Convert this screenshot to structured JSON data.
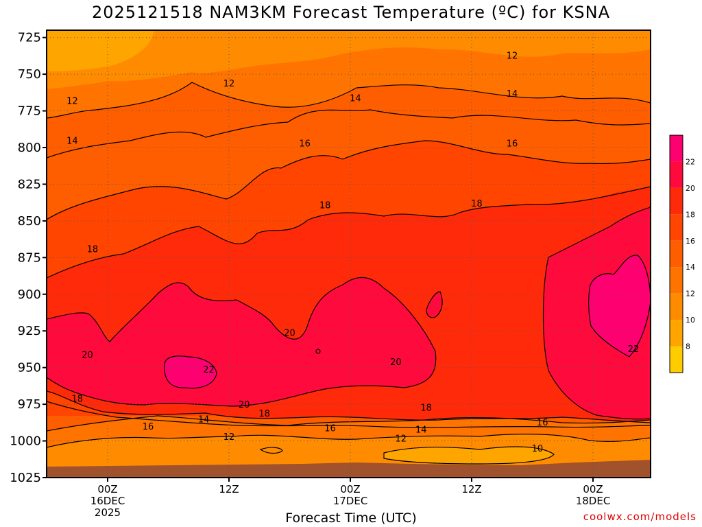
{
  "title": "2025121518 NAM3KM Forecast Temperature (ºC) for KSNA",
  "credit": "coolwx.com/models",
  "chart_data": {
    "type": "contour",
    "title": "2025121518 NAM3KM Forecast Temperature (ºC) for KSNA",
    "xlabel": "Forecast Time (UTC)",
    "ylabel": "",
    "y_axis": {
      "ticks": [
        725,
        750,
        775,
        800,
        825,
        850,
        875,
        900,
        925,
        950,
        975,
        1000,
        1025
      ],
      "range": [
        720,
        1025
      ],
      "inverted": true,
      "units": "hPa"
    },
    "x_axis": {
      "range_hours_from_00z_16dec": [
        -6,
        54
      ],
      "ticks": [
        {
          "hour": 0,
          "lines": [
            "00Z",
            "16DEC",
            "2025"
          ]
        },
        {
          "hour": 12,
          "lines": [
            "12Z"
          ]
        },
        {
          "hour": 24,
          "lines": [
            "00Z",
            "17DEC"
          ]
        },
        {
          "hour": 36,
          "lines": [
            "12Z"
          ]
        },
        {
          "hour": 48,
          "lines": [
            "00Z",
            "18DEC"
          ]
        }
      ]
    },
    "grid": true,
    "colorbar": {
      "position": "right",
      "levels": [
        6,
        8,
        10,
        12,
        14,
        16,
        18,
        20,
        22,
        24
      ],
      "labels": [
        "8",
        "10",
        "12",
        "14",
        "16",
        "18",
        "20",
        "22"
      ],
      "colors": [
        "#ffcc00",
        "#ffa500",
        "#ff8c00",
        "#ff7400",
        "#ff5e00",
        "#ff4500",
        "#ff2a0a",
        "#ff0a3c",
        "#ff0070"
      ]
    },
    "contour_labels": [
      {
        "value": "12",
        "hour": -3.5,
        "p": 768
      },
      {
        "value": "14",
        "hour": -3.5,
        "p": 795
      },
      {
        "value": "12",
        "hour": 12,
        "p": 756
      },
      {
        "value": "14",
        "hour": 24.5,
        "p": 766
      },
      {
        "value": "16",
        "hour": 19.5,
        "p": 797
      },
      {
        "value": "12",
        "hour": 40,
        "p": 737
      },
      {
        "value": "14",
        "hour": 40,
        "p": 763
      },
      {
        "value": "16",
        "hour": 40,
        "p": 797
      },
      {
        "value": "18",
        "hour": 21.5,
        "p": 839
      },
      {
        "value": "18",
        "hour": 36.5,
        "p": 838
      },
      {
        "value": "18",
        "hour": -1.5,
        "p": 869
      },
      {
        "value": "20",
        "hour": -2,
        "p": 941
      },
      {
        "value": "22",
        "hour": 10,
        "p": 951
      },
      {
        "value": "20",
        "hour": 18,
        "p": 926
      },
      {
        "value": "20",
        "hour": 28.5,
        "p": 946
      },
      {
        "value": "22",
        "hour": 52,
        "p": 937
      },
      {
        "value": "18",
        "hour": -3,
        "p": 971
      },
      {
        "value": "20",
        "hour": 13.5,
        "p": 975
      },
      {
        "value": "18",
        "hour": 15.5,
        "p": 981
      },
      {
        "value": "16",
        "hour": 4,
        "p": 990
      },
      {
        "value": "14",
        "hour": 9.5,
        "p": 985
      },
      {
        "value": "12",
        "hour": 12,
        "p": 997
      },
      {
        "value": "16",
        "hour": 22,
        "p": 991
      },
      {
        "value": "14",
        "hour": 31,
        "p": 992
      },
      {
        "value": "12",
        "hour": 29,
        "p": 998
      },
      {
        "value": "18",
        "hour": 31.5,
        "p": 977
      },
      {
        "value": "16",
        "hour": 43,
        "p": 987
      },
      {
        "value": "10",
        "hour": 42.5,
        "p": 1005
      }
    ]
  }
}
